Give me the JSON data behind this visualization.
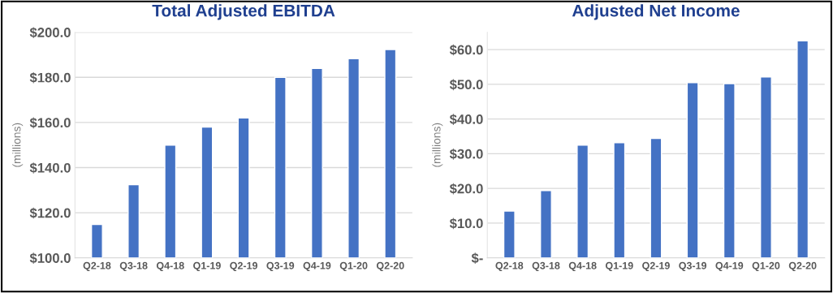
{
  "chart_data": [
    {
      "type": "bar",
      "title": "Total Adjusted EBITDA",
      "ylabel": "(millions)",
      "categories": [
        "Q2-18",
        "Q3-18",
        "Q4-18",
        "Q1-19",
        "Q2-19",
        "Q3-19",
        "Q4-19",
        "Q1-20",
        "Q2-20"
      ],
      "values": [
        114.8,
        132.4,
        150.0,
        158.0,
        162.0,
        180.0,
        184.0,
        188.3,
        192.3
      ],
      "color": "#4472c4",
      "ylim": [
        100,
        200
      ],
      "yticks": [
        {
          "value": 100,
          "label": "$100.0"
        },
        {
          "value": 120,
          "label": "$120.0"
        },
        {
          "value": 140,
          "label": "$140.0"
        },
        {
          "value": 160,
          "label": "$160.0"
        },
        {
          "value": 180,
          "label": "$180.0"
        },
        {
          "value": 200,
          "label": "$200.0"
        }
      ],
      "grid": "y"
    },
    {
      "type": "bar",
      "title": "Adjusted Net Income",
      "ylabel": "(millions)",
      "categories": [
        "Q2-18",
        "Q3-18",
        "Q4-18",
        "Q1-19",
        "Q2-19",
        "Q3-19",
        "Q4-19",
        "Q1-20",
        "Q2-20"
      ],
      "values": [
        13.5,
        19.4,
        32.5,
        33.2,
        34.4,
        50.5,
        50.2,
        52.1,
        62.5
      ],
      "color": "#4472c4",
      "ylim": [
        0,
        65
      ],
      "yticks": [
        {
          "value": 0,
          "label": "$-"
        },
        {
          "value": 10,
          "label": "$10.0"
        },
        {
          "value": 20,
          "label": "$20.0"
        },
        {
          "value": 30,
          "label": "$30.0"
        },
        {
          "value": 40,
          "label": "$40.0"
        },
        {
          "value": 50,
          "label": "$50.0"
        },
        {
          "value": 60,
          "label": "$60.0"
        }
      ],
      "grid": "y"
    }
  ]
}
